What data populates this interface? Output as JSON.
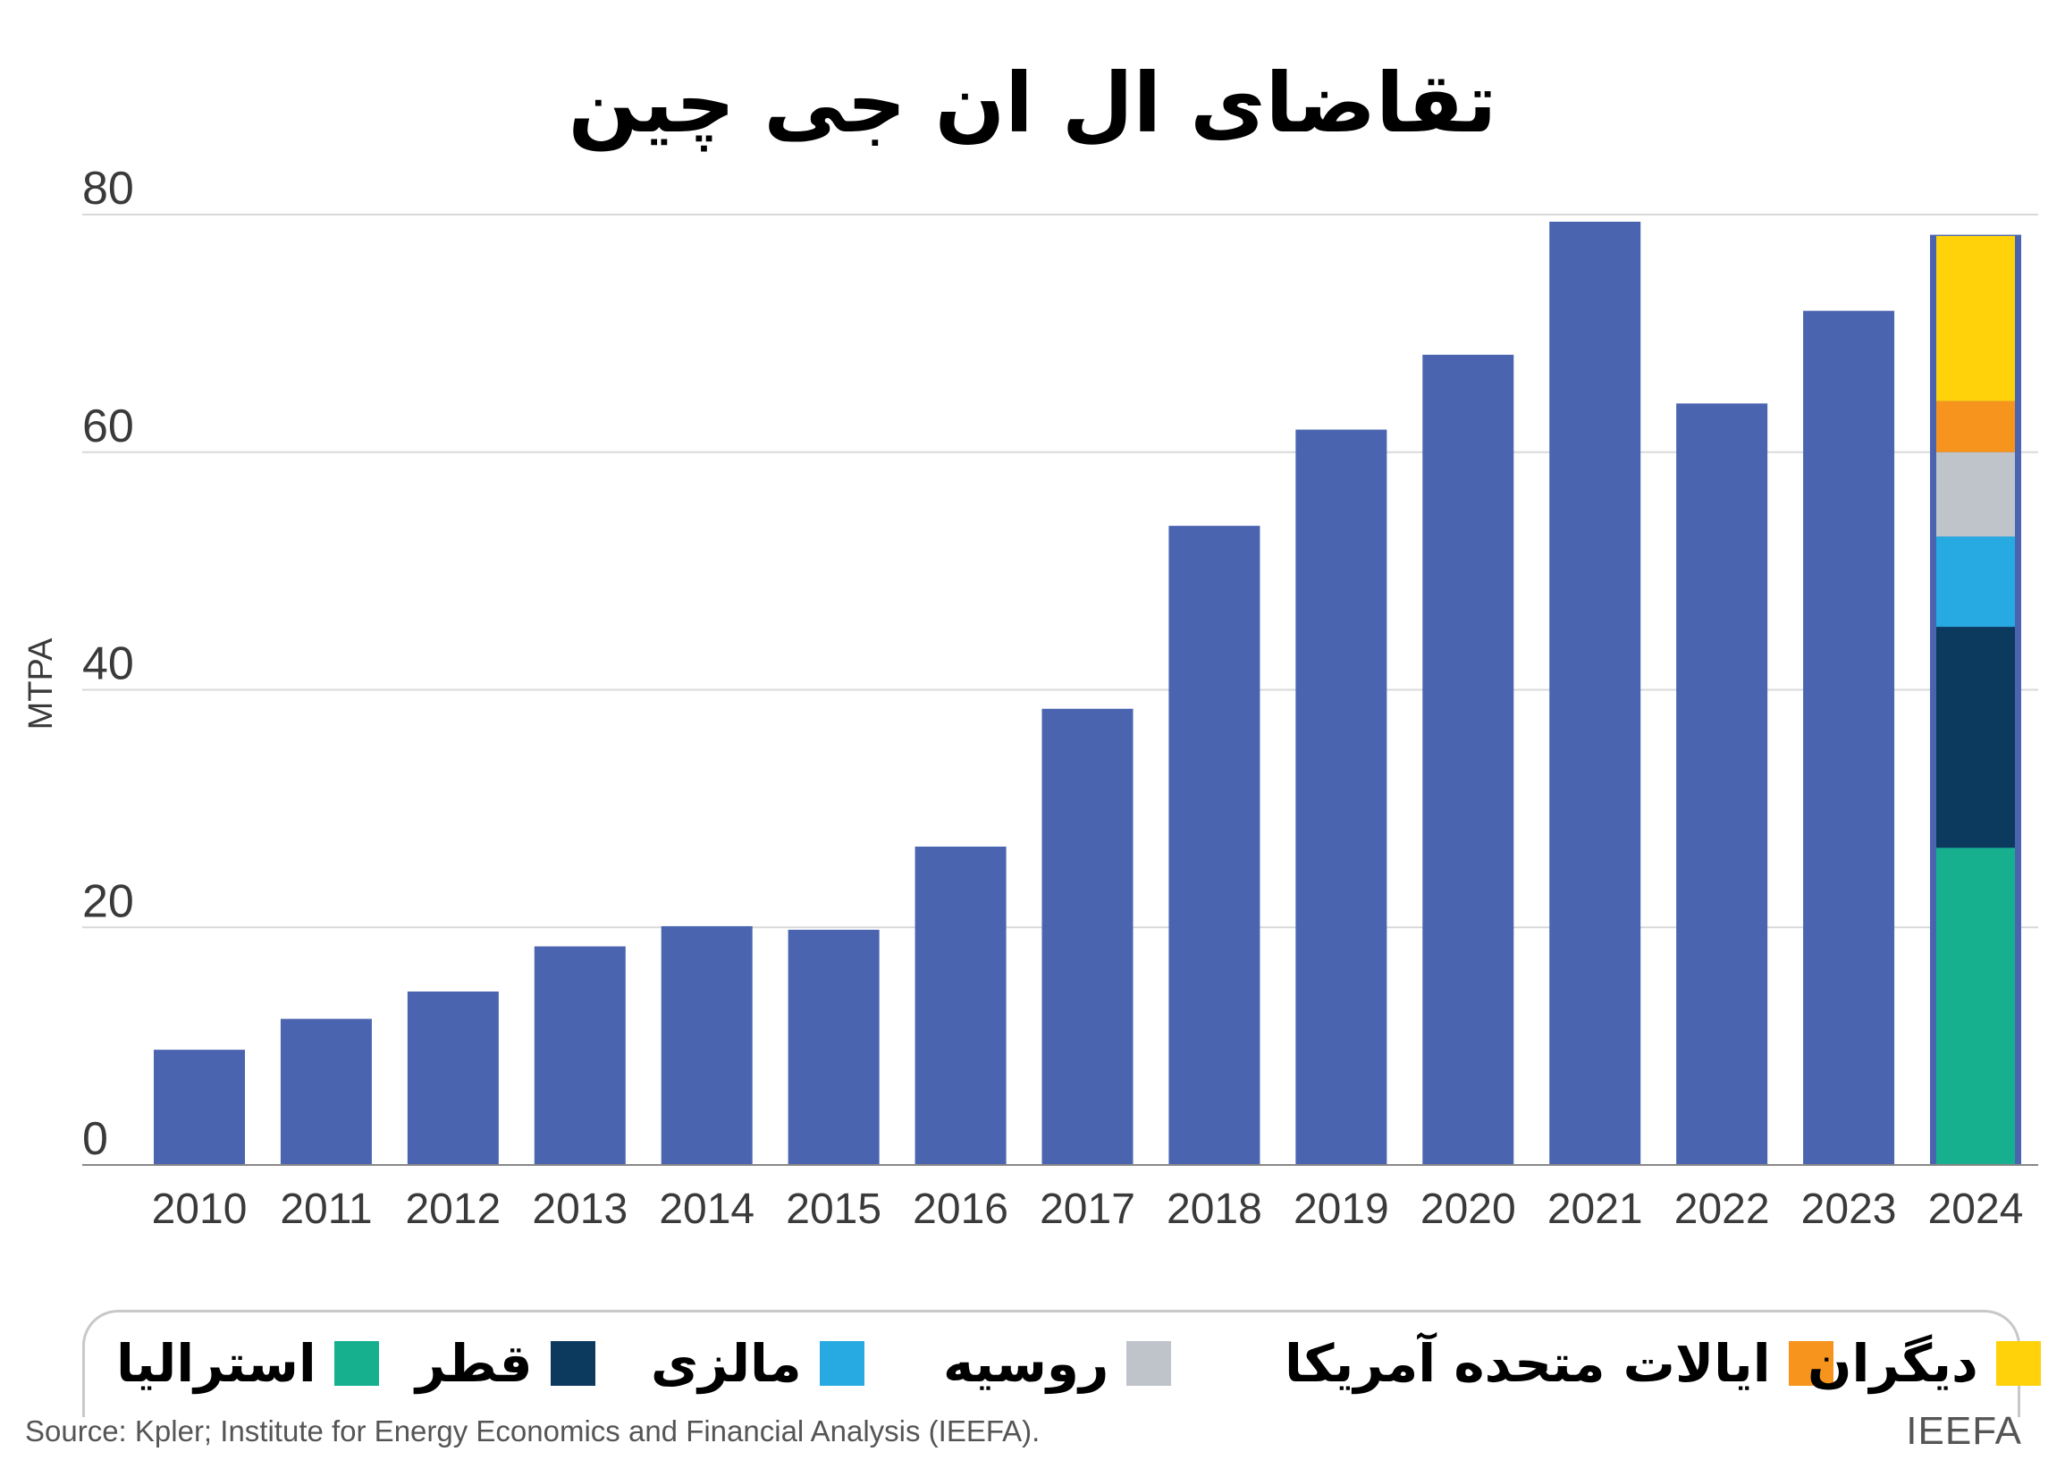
{
  "chart_data": {
    "type": "bar",
    "title": "تقاضای ال ان جی  چین",
    "ylabel": "MTPA",
    "xlabel": "",
    "ylim": [
      0,
      80
    ],
    "yticks": [
      0,
      20,
      40,
      60,
      80
    ],
    "grid": true,
    "categories": [
      "2010",
      "2011",
      "2012",
      "2013",
      "2014",
      "2015",
      "2016",
      "2017",
      "2018",
      "2019",
      "2020",
      "2021",
      "2022",
      "2023",
      "2024"
    ],
    "values": [
      9.7,
      12.3,
      14.6,
      18.4,
      20.1,
      19.8,
      26.8,
      38.4,
      53.8,
      61.9,
      68.2,
      79.4,
      64.1,
      71.9,
      78.3
    ],
    "bar_color": "#4a64b0",
    "stacked_2024": {
      "category": "2024",
      "series": [
        {
          "name": "استرالیا",
          "value": 26.7,
          "color": "#17b08f"
        },
        {
          "name": "قطر",
          "value": 18.6,
          "color": "#0c3a5f"
        },
        {
          "name": "مالزی",
          "value": 7.6,
          "color": "#27a9e1"
        },
        {
          "name": "روسیه",
          "value": 7.1,
          "color": "#bfc4cb"
        },
        {
          "name": "ایالات متحده آمریکا",
          "value": 4.3,
          "color": "#f7941d"
        },
        {
          "name": "دیگران",
          "value": 13.9,
          "color": "#ffd20a"
        }
      ]
    },
    "legend_placement": "bottom"
  },
  "footer": {
    "source": "Source: Kpler; Institute for Energy Economics and Financial Analysis (IEEFA).",
    "brand": "IEEFA"
  }
}
